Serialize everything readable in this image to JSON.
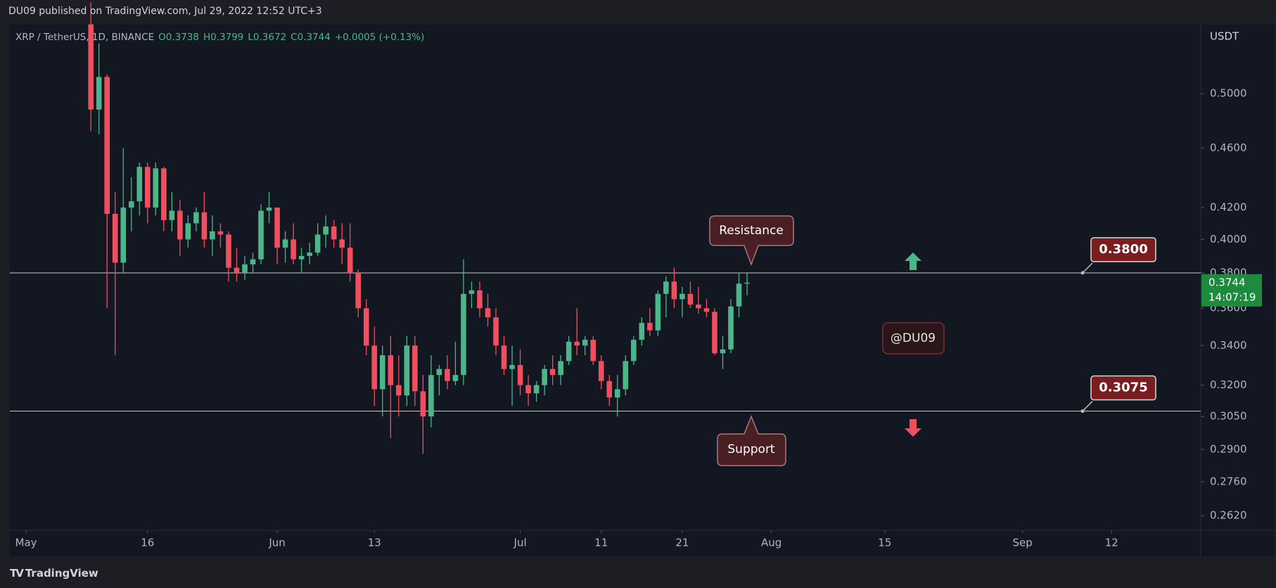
{
  "header": {
    "publisher": "DU09 published on TradingView.com, Jul 29, 2022 12:52 UTC+3"
  },
  "footer": {
    "brand": "TradingView"
  },
  "chart_data": {
    "type": "candlestick",
    "title": "XRP / TetherUS, 1D, BINANCE",
    "ohlc_legend": [
      "O0.3738",
      "H0.3799",
      "L0.3672",
      "C0.3744",
      "+0.0005 (+0.13%)"
    ],
    "y_axis_label": "USDT",
    "log_scale": true,
    "grid": false,
    "up_color": "#4cb68a",
    "down_color": "#ef4f5f",
    "x": [
      "2022-05-09",
      "2022-05-10",
      "2022-05-11",
      "2022-05-12",
      "2022-05-13",
      "2022-05-14",
      "2022-05-15",
      "2022-05-16",
      "2022-05-17",
      "2022-05-18",
      "2022-05-19",
      "2022-05-20",
      "2022-05-21",
      "2022-05-22",
      "2022-05-23",
      "2022-05-24",
      "2022-05-25",
      "2022-05-26",
      "2022-05-27",
      "2022-05-28",
      "2022-05-29",
      "2022-05-30",
      "2022-05-31",
      "2022-06-01",
      "2022-06-02",
      "2022-06-03",
      "2022-06-04",
      "2022-06-05",
      "2022-06-06",
      "2022-06-07",
      "2022-06-08",
      "2022-06-09",
      "2022-06-10",
      "2022-06-11",
      "2022-06-12",
      "2022-06-13",
      "2022-06-14",
      "2022-06-15",
      "2022-06-16",
      "2022-06-17",
      "2022-06-18",
      "2022-06-19",
      "2022-06-20",
      "2022-06-21",
      "2022-06-22",
      "2022-06-23",
      "2022-06-24",
      "2022-06-25",
      "2022-06-26",
      "2022-06-27",
      "2022-06-28",
      "2022-06-29",
      "2022-06-30",
      "2022-07-01",
      "2022-07-02",
      "2022-07-03",
      "2022-07-04",
      "2022-07-05",
      "2022-07-06",
      "2022-07-07",
      "2022-07-08",
      "2022-07-09",
      "2022-07-10",
      "2022-07-11",
      "2022-07-12",
      "2022-07-13",
      "2022-07-14",
      "2022-07-15",
      "2022-07-16",
      "2022-07-17",
      "2022-07-18",
      "2022-07-19",
      "2022-07-20",
      "2022-07-21",
      "2022-07-22",
      "2022-07-23",
      "2022-07-24",
      "2022-07-25",
      "2022-07-26",
      "2022-07-27",
      "2022-07-28",
      "2022-07-29"
    ],
    "open": [
      0.556,
      0.488,
      0.513,
      0.416,
      0.386,
      0.42,
      0.424,
      0.447,
      0.42,
      0.446,
      0.412,
      0.418,
      0.4,
      0.41,
      0.417,
      0.4,
      0.405,
      0.403,
      0.383,
      0.38,
      0.385,
      0.388,
      0.418,
      0.42,
      0.395,
      0.4,
      0.388,
      0.39,
      0.392,
      0.403,
      0.408,
      0.4,
      0.395,
      0.38,
      0.36,
      0.34,
      0.318,
      0.335,
      0.32,
      0.315,
      0.34,
      0.317,
      0.305,
      0.325,
      0.328,
      0.322,
      0.325,
      0.368,
      0.37,
      0.36,
      0.355,
      0.34,
      0.328,
      0.33,
      0.32,
      0.316,
      0.32,
      0.328,
      0.325,
      0.332,
      0.342,
      0.34,
      0.343,
      0.332,
      0.322,
      0.314,
      0.318,
      0.332,
      0.343,
      0.352,
      0.348,
      0.368,
      0.375,
      0.365,
      0.368,
      0.362,
      0.36,
      0.358,
      0.336,
      0.338,
      0.361,
      0.3738
    ],
    "high": [
      0.575,
      0.54,
      0.515,
      0.43,
      0.46,
      0.44,
      0.45,
      0.45,
      0.45,
      0.447,
      0.43,
      0.425,
      0.415,
      0.42,
      0.43,
      0.415,
      0.41,
      0.405,
      0.395,
      0.39,
      0.392,
      0.422,
      0.43,
      0.42,
      0.405,
      0.41,
      0.395,
      0.398,
      0.41,
      0.415,
      0.412,
      0.41,
      0.41,
      0.382,
      0.365,
      0.35,
      0.34,
      0.345,
      0.335,
      0.345,
      0.345,
      0.325,
      0.335,
      0.33,
      0.335,
      0.342,
      0.388,
      0.375,
      0.375,
      0.368,
      0.36,
      0.345,
      0.34,
      0.338,
      0.325,
      0.322,
      0.33,
      0.335,
      0.335,
      0.345,
      0.36,
      0.345,
      0.345,
      0.335,
      0.325,
      0.325,
      0.335,
      0.345,
      0.355,
      0.36,
      0.37,
      0.378,
      0.383,
      0.372,
      0.375,
      0.372,
      0.365,
      0.36,
      0.345,
      0.365,
      0.38,
      0.3799
    ],
    "low": [
      0.472,
      0.47,
      0.36,
      0.335,
      0.38,
      0.405,
      0.415,
      0.41,
      0.415,
      0.405,
      0.405,
      0.39,
      0.395,
      0.405,
      0.395,
      0.39,
      0.395,
      0.375,
      0.375,
      0.376,
      0.38,
      0.385,
      0.41,
      0.385,
      0.386,
      0.385,
      0.38,
      0.385,
      0.39,
      0.395,
      0.395,
      0.385,
      0.375,
      0.355,
      0.335,
      0.31,
      0.305,
      0.295,
      0.305,
      0.31,
      0.31,
      0.288,
      0.3,
      0.315,
      0.318,
      0.32,
      0.32,
      0.36,
      0.355,
      0.35,
      0.335,
      0.325,
      0.31,
      0.315,
      0.31,
      0.312,
      0.315,
      0.32,
      0.32,
      0.33,
      0.335,
      0.335,
      0.33,
      0.318,
      0.31,
      0.305,
      0.315,
      0.33,
      0.34,
      0.345,
      0.345,
      0.355,
      0.36,
      0.355,
      0.36,
      0.357,
      0.355,
      0.335,
      0.328,
      0.336,
      0.355,
      0.3672
    ],
    "close": [
      0.488,
      0.513,
      0.416,
      0.386,
      0.42,
      0.424,
      0.447,
      0.42,
      0.446,
      0.412,
      0.418,
      0.4,
      0.41,
      0.417,
      0.4,
      0.405,
      0.403,
      0.383,
      0.38,
      0.385,
      0.388,
      0.418,
      0.42,
      0.395,
      0.4,
      0.388,
      0.39,
      0.392,
      0.403,
      0.408,
      0.4,
      0.395,
      0.38,
      0.36,
      0.34,
      0.318,
      0.335,
      0.32,
      0.315,
      0.34,
      0.317,
      0.305,
      0.325,
      0.328,
      0.322,
      0.325,
      0.368,
      0.37,
      0.36,
      0.355,
      0.34,
      0.328,
      0.33,
      0.32,
      0.316,
      0.32,
      0.328,
      0.325,
      0.332,
      0.342,
      0.34,
      0.343,
      0.332,
      0.322,
      0.314,
      0.318,
      0.332,
      0.343,
      0.352,
      0.348,
      0.368,
      0.375,
      0.365,
      0.368,
      0.362,
      0.36,
      0.358,
      0.336,
      0.338,
      0.361,
      0.3738,
      0.3744
    ],
    "xlim": [
      "2022-04-29",
      "2022-09-23"
    ],
    "xticks": [
      {
        "value": "2022-05-01",
        "label": "May"
      },
      {
        "value": "2022-05-16",
        "label": "16"
      },
      {
        "value": "2022-06-01",
        "label": "Jun"
      },
      {
        "value": "2022-06-13",
        "label": "13"
      },
      {
        "value": "2022-07-01",
        "label": "Jul"
      },
      {
        "value": "2022-07-11",
        "label": "11"
      },
      {
        "value": "2022-07-21",
        "label": "21"
      },
      {
        "value": "2022-08-01",
        "label": "Aug"
      },
      {
        "value": "2022-08-15",
        "label": "15"
      },
      {
        "value": "2022-09-01",
        "label": "Sep"
      },
      {
        "value": "2022-09-12",
        "label": "12"
      }
    ],
    "ylim": [
      0.2562,
      0.5558
    ],
    "yticks": [
      {
        "value": 0.262,
        "label": "0.2620"
      },
      {
        "value": 0.276,
        "label": "0.2760"
      },
      {
        "value": 0.29,
        "label": "0.2900"
      },
      {
        "value": 0.305,
        "label": "0.3050"
      },
      {
        "value": 0.32,
        "label": "0.3200"
      },
      {
        "value": 0.34,
        "label": "0.3400"
      },
      {
        "value": 0.36,
        "label": "0.3600"
      },
      {
        "value": 0.38,
        "label": "0.3800"
      },
      {
        "value": 0.4,
        "label": "0.4000"
      },
      {
        "value": 0.42,
        "label": "0.4200"
      },
      {
        "value": 0.46,
        "label": "0.4600"
      },
      {
        "value": 0.5,
        "label": "0.5000"
      }
    ],
    "levels": [
      {
        "value": 0.38,
        "label": "0.3800"
      },
      {
        "value": 0.3075,
        "label": "0.3075"
      }
    ],
    "last_price": 0.3744,
    "countdown": "14:07:19",
    "annotations": [
      "Resistance",
      "Support",
      "@DU09"
    ]
  }
}
